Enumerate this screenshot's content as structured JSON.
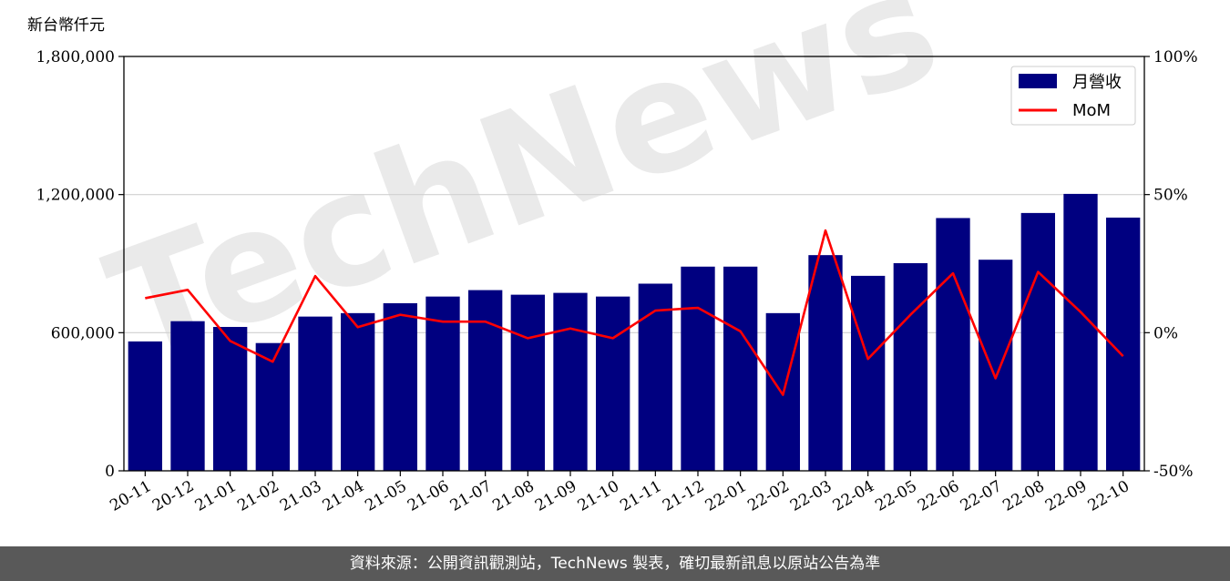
{
  "chart_data": {
    "type": "bar",
    "unit_label": "新台幣仟元",
    "categories": [
      "20-11",
      "20-12",
      "21-01",
      "21-02",
      "21-03",
      "21-04",
      "21-05",
      "21-06",
      "21-07",
      "21-08",
      "21-09",
      "21-10",
      "21-11",
      "21-12",
      "22-01",
      "22-02",
      "22-03",
      "22-04",
      "22-05",
      "22-06",
      "22-07",
      "22-08",
      "22-09",
      "22-10"
    ],
    "series": [
      {
        "name": "月營收",
        "type": "bar",
        "axis": "left",
        "color": "#000080",
        "values": [
          562000,
          650000,
          625000,
          555000,
          670000,
          685000,
          728000,
          757000,
          785000,
          765000,
          773000,
          757000,
          813000,
          887000,
          887000,
          685000,
          937000,
          847000,
          902000,
          1098000,
          917000,
          1120000,
          1203000,
          1100000
        ]
      },
      {
        "name": "MoM",
        "type": "line",
        "axis": "right",
        "color": "#ff0000",
        "values": [
          12.5,
          15.5,
          -3.0,
          -10.5,
          20.5,
          2.0,
          6.5,
          4.0,
          4.0,
          -2.0,
          1.5,
          -2.0,
          8.0,
          9.0,
          0.5,
          -22.5,
          37.0,
          -9.5,
          6.5,
          21.5,
          -16.5,
          22.0,
          7.5,
          -8.5
        ]
      }
    ],
    "y_left": {
      "min": 0,
      "max": 1800000,
      "ticks": [
        "0",
        "600,000",
        "1,200,000",
        "1,800,000"
      ],
      "tick_values": [
        0,
        600000,
        1200000,
        1800000
      ]
    },
    "y_right": {
      "min": -50,
      "max": 100,
      "ticks": [
        "-50%",
        "0%",
        "50%",
        "100%"
      ],
      "tick_values": [
        -50,
        0,
        50,
        100
      ]
    },
    "grid": "horizontal",
    "legend_position": "top-right",
    "watermark": "TechNews"
  },
  "footer": {
    "text": "資料來源：公開資訊觀測站，TechNews 製表，確切最新訊息以原站公告為準"
  }
}
